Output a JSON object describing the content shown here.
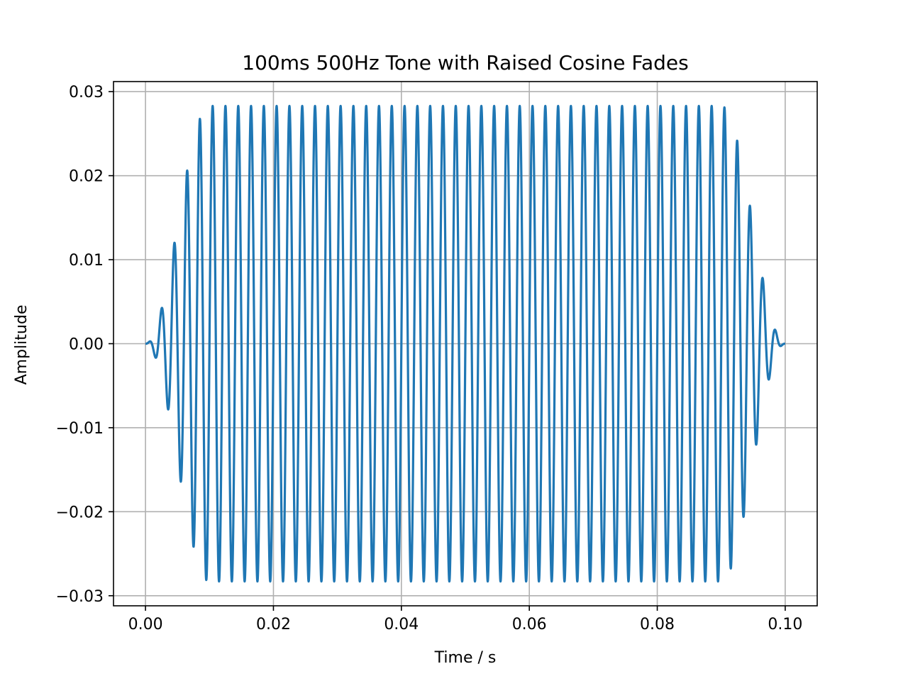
{
  "chart_data": {
    "type": "line",
    "title": "100ms 500Hz Tone with Raised Cosine Fades",
    "xlabel": "Time / s",
    "ylabel": "Amplitude",
    "xlim": [
      -0.005,
      0.105
    ],
    "ylim": [
      -0.0312,
      0.0312
    ],
    "xticks": [
      0.0,
      0.02,
      0.04,
      0.06,
      0.08,
      0.1
    ],
    "xtick_labels": [
      "0.00",
      "0.02",
      "0.04",
      "0.06",
      "0.08",
      "0.10"
    ],
    "yticks": [
      -0.03,
      -0.02,
      -0.01,
      0.0,
      0.01,
      0.02,
      0.03
    ],
    "ytick_labels": [
      "−0.03",
      "−0.02",
      "−0.01",
      "0.00",
      "0.01",
      "0.02",
      "0.03"
    ],
    "grid": true,
    "series": [
      {
        "color": "#1f77b4",
        "signal": {
          "frequency_hz": 500,
          "duration_s": 0.1,
          "peak_amplitude": 0.0283,
          "fade_duration_s": 0.01,
          "fade_shape": "raised cosine"
        }
      }
    ]
  }
}
